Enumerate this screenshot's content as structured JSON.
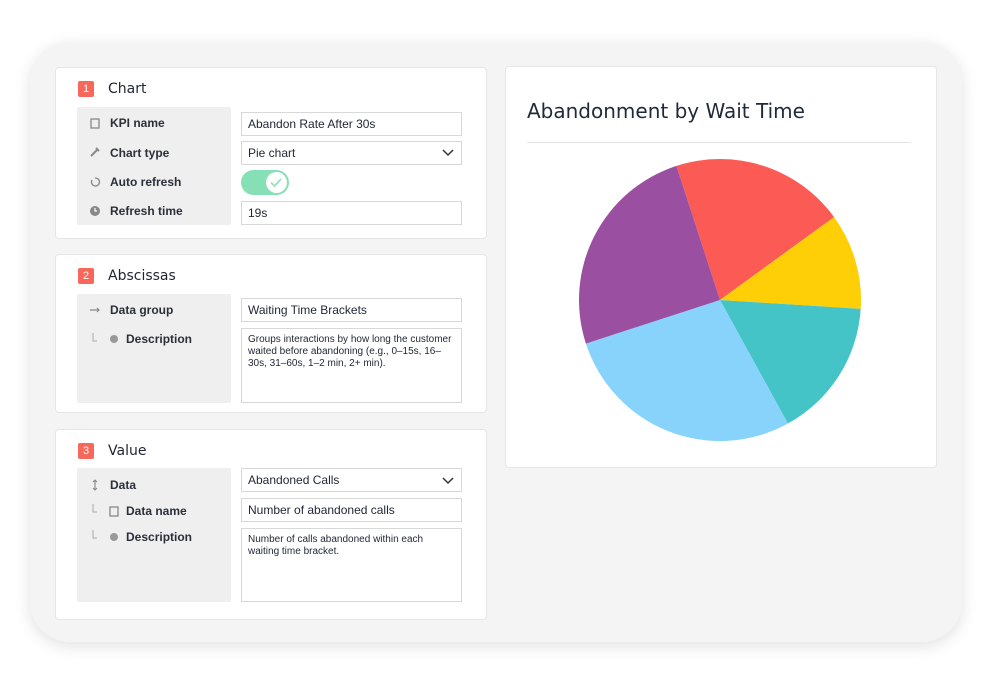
{
  "sections": [
    {
      "number": 1,
      "title": "Chart",
      "fields": [
        {
          "label": "KPI name",
          "value": "Abandon Rate After 30s"
        },
        {
          "label": "Chart type",
          "value": "Pie chart"
        },
        {
          "label": "Auto refresh",
          "on": true
        },
        {
          "label": "Refresh time",
          "value": "19s"
        }
      ]
    },
    {
      "number": 2,
      "title": "Abscissas",
      "fields": [
        {
          "label": "Data group",
          "value": "Waiting Time Brackets"
        },
        {
          "label": "Description",
          "value": "Groups interactions by how long the customer waited before abandoning (e.g., 0–15s, 16–30s, 31–60s, 1–2 min, 2+ min)."
        }
      ]
    },
    {
      "number": 3,
      "title": "Value",
      "fields": [
        {
          "label": "Data",
          "value": "Abandoned Calls"
        },
        {
          "label": "Data name",
          "value": "Number of abandoned calls"
        },
        {
          "label": "Description",
          "value": "Number of calls abandoned within each waiting time bracket."
        }
      ]
    }
  ],
  "chart_data": {
    "type": "pie",
    "title": "Abandonment by Wait Time",
    "categories": [
      null,
      null,
      null,
      null,
      null
    ],
    "values": [
      20,
      11,
      16,
      28,
      25
    ],
    "colors": [
      "#fc5a55",
      "#fecf06",
      "#45c4c7",
      "#87d3fb",
      "#9b4fa1"
    ]
  }
}
